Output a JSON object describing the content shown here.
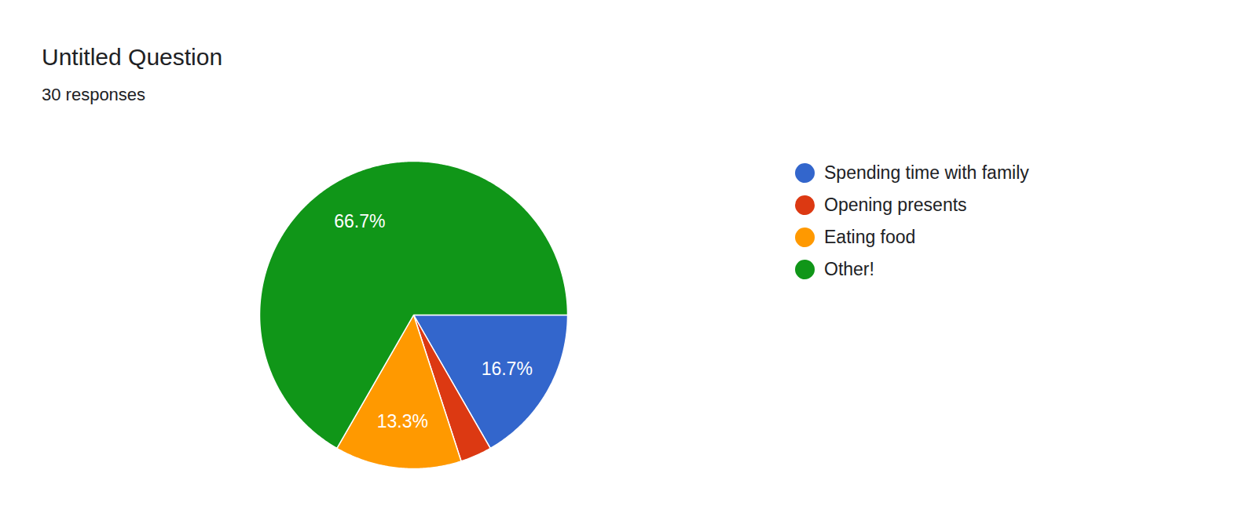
{
  "chart_data": {
    "type": "pie",
    "title": "Untitled Question",
    "subtitle": "30 responses",
    "categories": [
      "Spending time with family",
      "Opening presents",
      "Eating food",
      "Other!"
    ],
    "values": [
      16.7,
      3.3,
      13.3,
      66.7
    ],
    "colors": [
      "#3366cc",
      "#dc3912",
      "#ff9900",
      "#109618"
    ],
    "value_labels": [
      "16.7%",
      null,
      "13.3%",
      "66.7%"
    ],
    "data_labels": true,
    "legend": "right"
  }
}
